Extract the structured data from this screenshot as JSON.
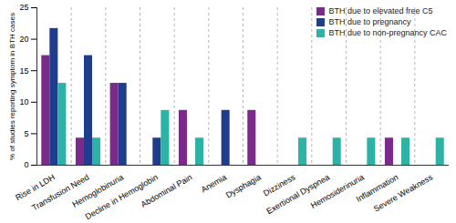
{
  "chart_data": {
    "type": "bar",
    "y_label": "% of studies reporting symptom in BTH cases",
    "categories": [
      "Rise in LDH",
      "Transfusion Need",
      "Hemoglobinuria",
      "Decline in Hemoglobin",
      "Abdominal Pain",
      "Anemia",
      "Dysphagia",
      "Dizziness",
      "Exertional Dyspnea",
      "Hemosiderinuria",
      "Inflammation",
      "Severe Weakness"
    ],
    "series": [
      {
        "name": "BTH due to elevated free C5",
        "color": "#7b2a8c",
        "values": [
          17.4,
          4.3,
          13.0,
          0,
          8.7,
          0,
          8.7,
          0,
          0,
          0,
          4.3,
          0
        ]
      },
      {
        "name": "BTH due to pregnancy",
        "color": "#1f3d8c",
        "values": [
          21.7,
          17.4,
          13.0,
          4.3,
          0,
          8.7,
          0,
          0,
          0,
          0,
          0,
          0
        ]
      },
      {
        "name": "BTH due to non-pregnancy CAC",
        "color": "#2db3a6",
        "values": [
          13.0,
          4.3,
          0,
          8.7,
          4.3,
          0,
          0,
          4.3,
          4.3,
          4.3,
          4.3,
          4.3
        ]
      }
    ],
    "ylim": [
      0,
      25
    ],
    "yticks": [
      0,
      5,
      10,
      15,
      20,
      25
    ],
    "legend": "top-right",
    "grid": false
  }
}
